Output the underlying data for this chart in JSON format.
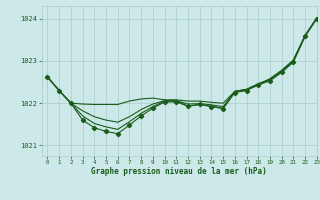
{
  "title": "Graphe pression niveau de la mer (hPa)",
  "bg_color": "#cce8e8",
  "grid_color": "#aacccc",
  "line_color": "#1a5c1a",
  "xlim": [
    -0.5,
    23
  ],
  "ylim": [
    1020.75,
    1024.3
  ],
  "yticks": [
    1021,
    1022,
    1023,
    1024
  ],
  "xticks": [
    0,
    1,
    2,
    3,
    4,
    5,
    6,
    7,
    8,
    9,
    10,
    11,
    12,
    13,
    14,
    15,
    16,
    17,
    18,
    19,
    20,
    21,
    22,
    23
  ],
  "y_upper": [
    1022.62,
    1022.3,
    1022.0,
    1021.98,
    1021.97,
    1021.97,
    1021.97,
    1022.05,
    1022.1,
    1022.12,
    1022.08,
    1022.08,
    1022.05,
    1022.05,
    1022.02,
    1022.0,
    1022.28,
    1022.32,
    1022.45,
    1022.58,
    1022.78,
    1023.02,
    1023.6,
    1024.02
  ],
  "y_mid1": [
    1022.62,
    1022.3,
    1022.0,
    1021.82,
    1021.68,
    1021.6,
    1021.55,
    1021.68,
    1021.85,
    1021.98,
    1022.06,
    1022.06,
    1021.98,
    1021.99,
    1021.96,
    1021.92,
    1022.28,
    1022.33,
    1022.46,
    1022.56,
    1022.76,
    1023.02,
    1023.6,
    1024.02
  ],
  "y_mid2": [
    1022.62,
    1022.3,
    1022.0,
    1021.7,
    1021.52,
    1021.44,
    1021.38,
    1021.56,
    1021.76,
    1021.92,
    1022.05,
    1022.05,
    1021.93,
    1021.97,
    1021.93,
    1021.88,
    1022.28,
    1022.32,
    1022.45,
    1022.55,
    1022.75,
    1023.0,
    1023.6,
    1024.0
  ],
  "y_markers": [
    1022.62,
    1022.3,
    1022.0,
    1021.6,
    1021.42,
    1021.33,
    1021.28,
    1021.48,
    1021.7,
    1021.88,
    1022.03,
    1022.03,
    1021.93,
    1021.97,
    1021.92,
    1021.87,
    1022.25,
    1022.3,
    1022.43,
    1022.53,
    1022.73,
    1022.97,
    1023.58,
    1024.0
  ]
}
